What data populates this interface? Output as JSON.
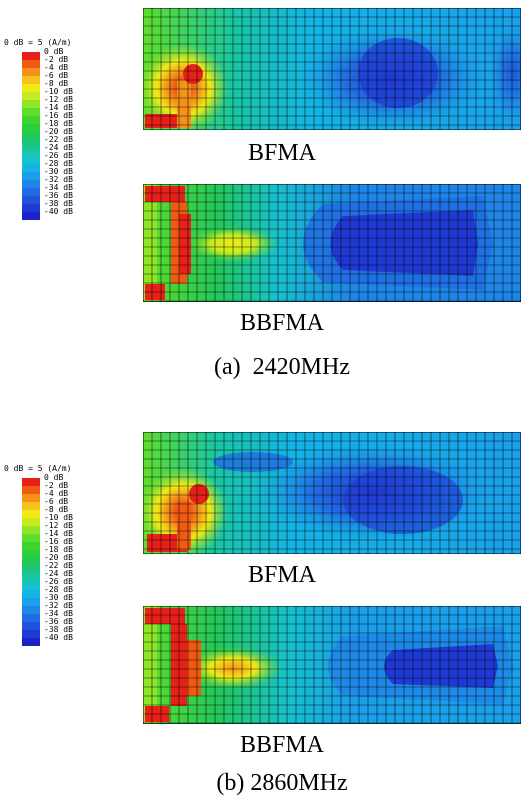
{
  "legend": {
    "title": "0 dB = 5 (A/m)",
    "ticks": [
      "0 dB",
      "-2 dB",
      "-4 dB",
      "-6 dB",
      "-8 dB",
      "-10 dB",
      "-12 dB",
      "-14 dB",
      "-16 dB",
      "-18 dB",
      "-20 dB",
      "-22 dB",
      "-24 dB",
      "-26 dB",
      "-28 dB",
      "-30 dB",
      "-32 dB",
      "-34 dB",
      "-36 dB",
      "-38 dB",
      "-40 dB"
    ],
    "colors": [
      "#e8201a",
      "#f05a12",
      "#f5921a",
      "#f7c21c",
      "#f2ea18",
      "#c6ec1e",
      "#8ee626",
      "#5ede2a",
      "#3ed62e",
      "#2ecf3c",
      "#22c85a",
      "#1cc680",
      "#18c6a8",
      "#16c2cc",
      "#14b4e6",
      "#1aa0ea",
      "#1f86e8",
      "#216ce4",
      "#2052dc",
      "#1f3ad4",
      "#1c22c8"
    ]
  },
  "panels": [
    {
      "caption": "BFMA"
    },
    {
      "caption": "BBFMA"
    },
    {
      "caption": "BFMA"
    },
    {
      "caption": "BBFMA"
    }
  ],
  "figure_labels": [
    "(a)  2420MHz",
    "(b) 2860MHz"
  ]
}
